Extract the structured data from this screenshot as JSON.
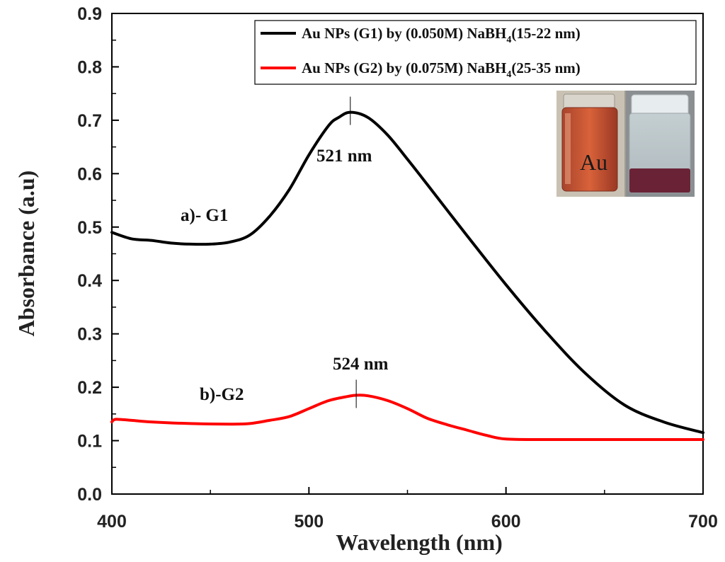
{
  "chart_data": {
    "type": "line",
    "title": "",
    "xlabel": "Wavelength (nm)",
    "ylabel": "Absorbance (a.u)",
    "xlim": [
      400,
      700
    ],
    "ylim": [
      0.0,
      0.9
    ],
    "xticks": [
      400,
      500,
      600,
      700
    ],
    "xtick_labels": [
      "400",
      "500",
      "600",
      "700"
    ],
    "yticks": [
      0.0,
      0.1,
      0.2,
      0.3,
      0.4,
      0.5,
      0.6,
      0.7,
      0.8,
      0.9
    ],
    "ytick_labels": [
      "0.0",
      "0.1",
      "0.2",
      "0.3",
      "0.4",
      "0.5",
      "0.6",
      "0.7",
      "0.8",
      "0.9"
    ],
    "grid": false,
    "legend_position": "top-right",
    "series": [
      {
        "name": "Au NPs (G1) by (0.050M) NaBH4(15-22 nm)",
        "legend_main": "Au NPs (G1) by (0.050M) NaBH",
        "legend_sub": "4",
        "legend_tail": "(15-22 nm)",
        "color": "#000000",
        "x": [
          400,
          410,
          420,
          430,
          440,
          450,
          460,
          470,
          480,
          490,
          500,
          510,
          515,
          521,
          530,
          540,
          550,
          560,
          580,
          600,
          620,
          640,
          660,
          680,
          700
        ],
        "y": [
          0.49,
          0.478,
          0.475,
          0.47,
          0.468,
          0.468,
          0.472,
          0.485,
          0.52,
          0.57,
          0.635,
          0.69,
          0.705,
          0.715,
          0.705,
          0.672,
          0.627,
          0.58,
          0.485,
          0.392,
          0.305,
          0.227,
          0.167,
          0.135,
          0.115
        ]
      },
      {
        "name": "Au NPs (G2) by (0.075M) NaBH4(25-35 nm)",
        "legend_main": "Au NPs (G2) by (0.075M) NaBH",
        "legend_sub": "4",
        "legend_tail": "(25-35 nm)",
        "color": "#ff0000",
        "x": [
          400,
          402,
          410,
          420,
          440,
          460,
          470,
          480,
          490,
          500,
          510,
          520,
          524,
          530,
          540,
          550,
          560,
          570,
          580,
          590,
          600,
          620,
          650,
          700
        ],
        "y": [
          0.135,
          0.14,
          0.138,
          0.135,
          0.132,
          0.131,
          0.132,
          0.138,
          0.145,
          0.16,
          0.175,
          0.183,
          0.185,
          0.184,
          0.175,
          0.16,
          0.142,
          0.13,
          0.12,
          0.11,
          0.103,
          0.102,
          0.102,
          0.102
        ]
      }
    ],
    "annotations": [
      {
        "text": "521 nm",
        "x": 521,
        "y": 0.715,
        "type": "peak"
      },
      {
        "text": "524 nm",
        "x": 524,
        "y": 0.185,
        "type": "peak"
      },
      {
        "text": "a)- G1",
        "type": "curve-label"
      },
      {
        "text": "b)-G2",
        "type": "curve-label"
      }
    ],
    "inset": {
      "vial_label": "Au"
    }
  }
}
